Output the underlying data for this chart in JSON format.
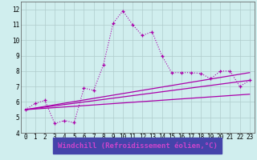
{
  "background_color": "#d0eeee",
  "grid_color": "#b0cccc",
  "line_color": "#aa00aa",
  "xlabel": "Windchill (Refroidissement éolien,°C)",
  "xlabel_fontsize": 6.5,
  "xlabel_color": "#cc44cc",
  "xlabel_bg": "#4444aa",
  "xlim": [
    -0.5,
    23.5
  ],
  "ylim": [
    4,
    12.5
  ],
  "xticks": [
    0,
    1,
    2,
    3,
    4,
    5,
    6,
    7,
    8,
    9,
    10,
    11,
    12,
    13,
    14,
    15,
    16,
    17,
    18,
    19,
    20,
    21,
    22,
    23
  ],
  "yticks": [
    4,
    5,
    6,
    7,
    8,
    9,
    10,
    11,
    12
  ],
  "tick_fontsize": 5.5,
  "main_series": {
    "x": [
      0,
      1,
      2,
      3,
      4,
      5,
      6,
      7,
      8,
      9,
      10,
      11,
      12,
      13,
      14,
      15,
      16,
      17,
      18,
      19,
      20,
      21,
      22,
      23
    ],
    "y": [
      5.5,
      5.9,
      6.1,
      4.6,
      4.8,
      4.65,
      6.9,
      6.75,
      8.4,
      11.1,
      11.9,
      11.0,
      10.3,
      10.55,
      9.0,
      7.9,
      7.9,
      7.9,
      7.85,
      7.5,
      8.0,
      8.0,
      7.0,
      7.4
    ]
  },
  "trend_lines": [
    {
      "x": [
        0,
        23
      ],
      "y": [
        5.5,
        7.4
      ]
    },
    {
      "x": [
        0,
        23
      ],
      "y": [
        5.5,
        6.5
      ]
    },
    {
      "x": [
        0,
        23
      ],
      "y": [
        5.5,
        7.9
      ]
    }
  ]
}
